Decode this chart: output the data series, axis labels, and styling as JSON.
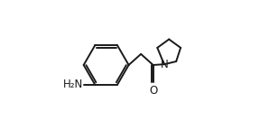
{
  "bg_color": "#ffffff",
  "line_color": "#1a1a1a",
  "line_width": 1.4,
  "font_size": 8.5,
  "NH2_label": "H₂N",
  "N_label": "N",
  "O_label": "O"
}
